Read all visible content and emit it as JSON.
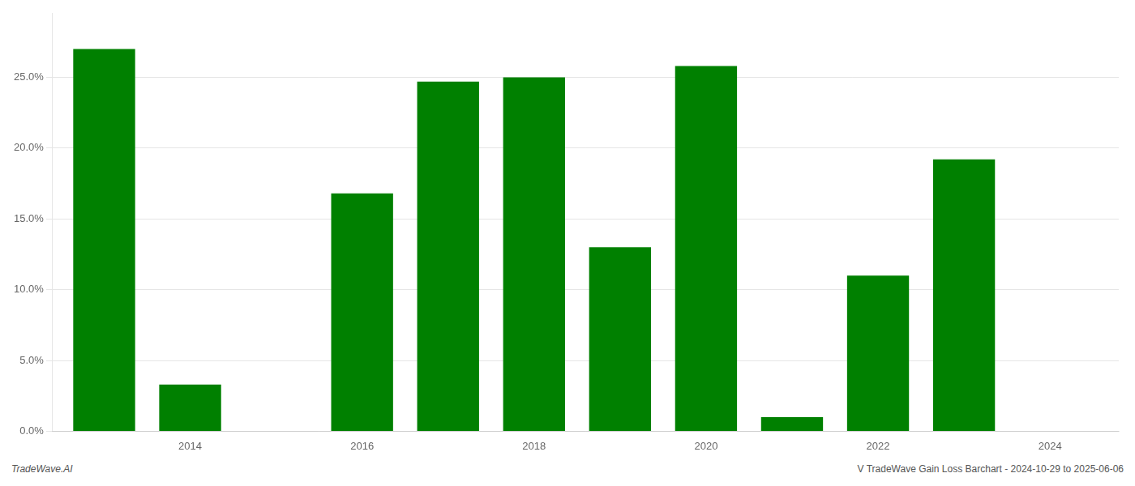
{
  "chart_data": {
    "type": "bar",
    "x": [
      2013,
      2014,
      2016,
      2017,
      2018,
      2019,
      2020,
      2021,
      2022,
      2023
    ],
    "values": [
      0.27,
      0.033,
      0.168,
      0.247,
      0.25,
      0.13,
      0.258,
      0.01,
      0.11,
      0.192
    ],
    "color": "#008000",
    "xlim": [
      2012.4,
      2024.8
    ],
    "xticks": [
      2014,
      2016,
      2018,
      2020,
      2022,
      2024
    ],
    "ylim": [
      0.0,
      0.295
    ],
    "yticks": [
      {
        "value": 0.0,
        "label": "0.0%"
      },
      {
        "value": 0.05,
        "label": "5.0%"
      },
      {
        "value": 0.1,
        "label": "10.0%"
      },
      {
        "value": 0.15,
        "label": "15.0%"
      },
      {
        "value": 0.2,
        "label": "20.0%"
      },
      {
        "value": 0.25,
        "label": "25.0%"
      }
    ],
    "grid": true,
    "annotations": [
      "TradeWave.AI",
      "V TradeWave Gain Loss Barchart - 2024-10-29 to 2025-06-06"
    ]
  }
}
